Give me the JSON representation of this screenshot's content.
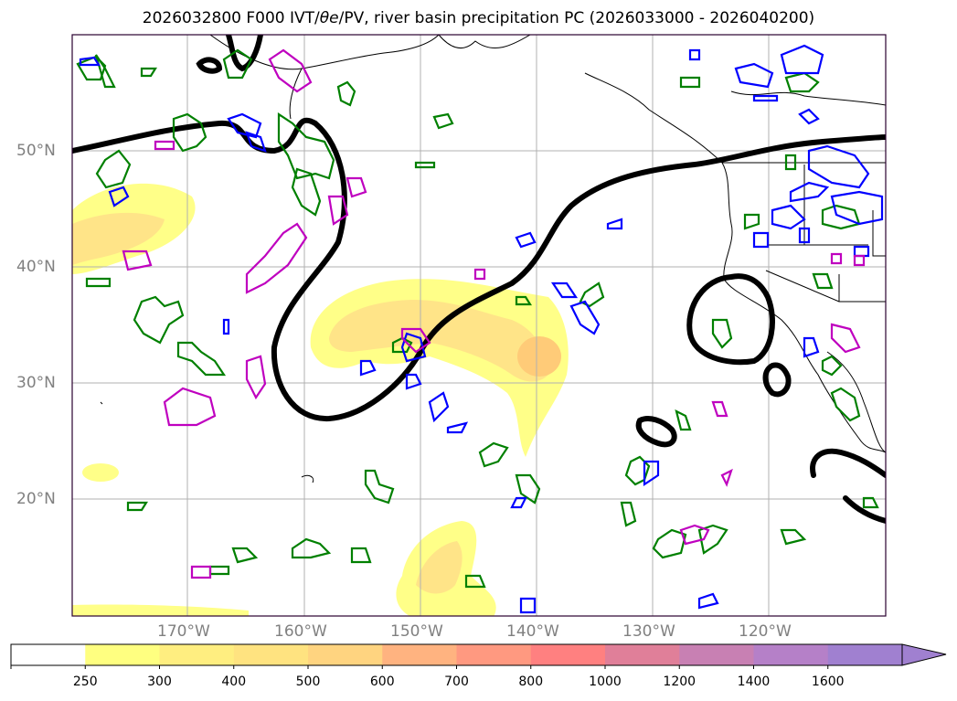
{
  "title": {
    "run": "2026032800 F000 IVT/",
    "theta_e": "θe",
    "rest": "/PV, river basin precipitation PC (2026033000 - 2026040200)"
  },
  "map": {
    "lat_labels": [
      "50°N",
      "40°N",
      "30°N",
      "20°N"
    ],
    "lon_labels": [
      "170°W",
      "160°W",
      "150°W",
      "140°W",
      "130°W",
      "120°W"
    ],
    "colors": {
      "ivt_low": "#ffff80",
      "ivt_mid": "#ffe38a",
      "ivt_high": "#ffc870",
      "pv_contour": "#000000",
      "theta_e_green": "#008000",
      "theta_e_blue": "#0000ff",
      "theta_e_magenta": "#bf00bf",
      "gridline": "#b0b0b0",
      "coastline": "#000000"
    }
  },
  "colorbar": {
    "labels": [
      "250",
      "300",
      "400",
      "500",
      "600",
      "700",
      "800",
      "1000",
      "1200",
      "1400",
      "1600"
    ],
    "colors": [
      "#ffffff",
      "#ffff80",
      "#ffee80",
      "#ffe380",
      "#ffd480",
      "#ffb380",
      "#ff9980",
      "#ff8080",
      "#e07f99",
      "#c880b3",
      "#b580c8",
      "#a080d0"
    ],
    "extend": "max"
  }
}
